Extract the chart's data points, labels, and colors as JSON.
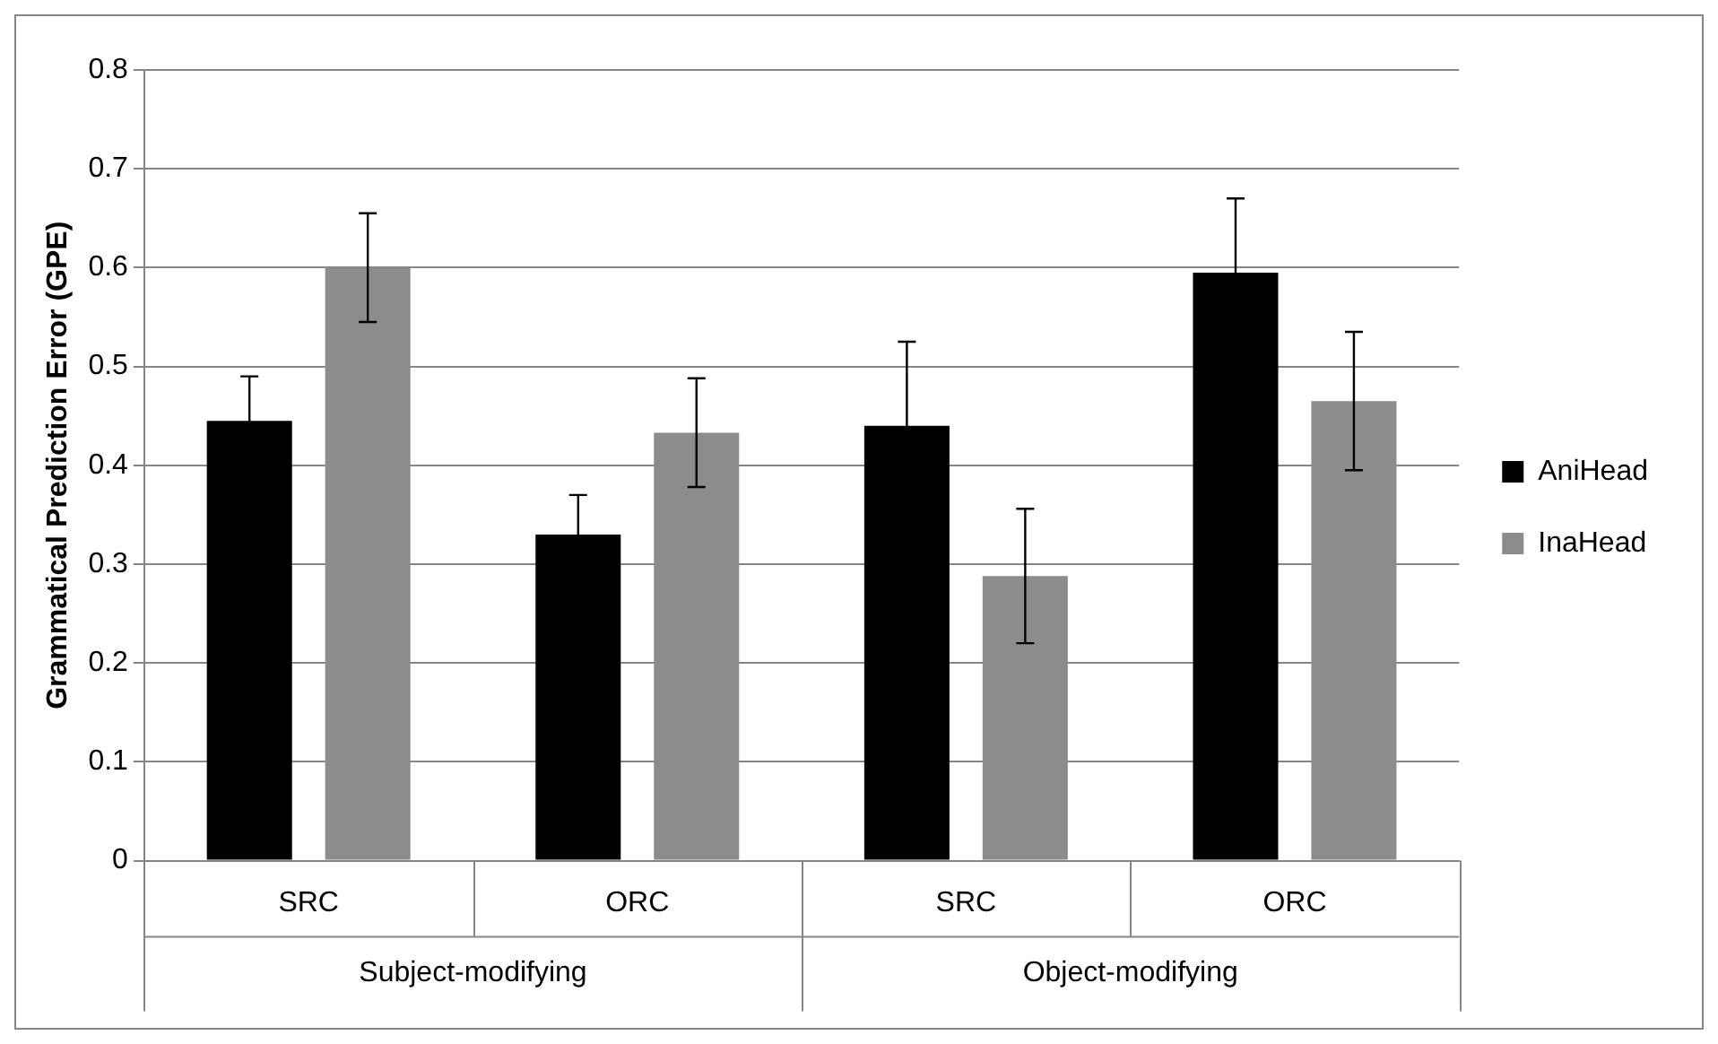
{
  "chart_data": {
    "type": "bar",
    "ylabel": "Grammatical Prediction Error (GPE)",
    "categories": [
      "SRC",
      "ORC",
      "SRC",
      "ORC"
    ],
    "annotations": [
      "Subject-modifying",
      "Object-modifying"
    ],
    "series": [
      {
        "name": "AniHead",
        "color": "#000000",
        "values": [
          0.445,
          0.33,
          0.44,
          0.595
        ],
        "errors": [
          0.045,
          0.04,
          0.085,
          0.075
        ]
      },
      {
        "name": "InaHead",
        "color": "#8c8c8c",
        "values": [
          0.6,
          0.433,
          0.288,
          0.465
        ],
        "errors": [
          0.055,
          0.055,
          0.068,
          0.07
        ]
      }
    ],
    "ylim": [
      0,
      0.8
    ],
    "yticks": [
      0,
      0.1,
      0.2,
      0.3,
      0.4,
      0.5,
      0.6,
      0.7,
      0.8
    ],
    "grid": "y",
    "legend": "right"
  }
}
